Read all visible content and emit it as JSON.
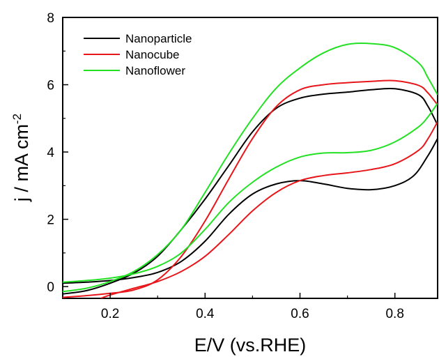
{
  "chart_data": {
    "type": "line",
    "title": "",
    "xlabel": "E/V (vs.RHE)",
    "ylabel": "j / mA cm",
    "ylabel_superscript": "-2",
    "xlim": [
      0.1,
      0.89
    ],
    "ylim": [
      -0.35,
      8
    ],
    "x_ticks": [
      0.2,
      0.4,
      0.6,
      0.8
    ],
    "x_tick_labels": [
      "0.2",
      "0.4",
      "0.6",
      "0.8"
    ],
    "y_ticks": [
      0,
      2,
      4,
      6,
      8
    ],
    "y_tick_labels": [
      "0",
      "2",
      "4",
      "6",
      "8"
    ],
    "grid": false,
    "legend_position": "top-left",
    "series": [
      {
        "name": "Nanoparticle",
        "color": "#000000",
        "forward": [
          [
            0.1,
            0.1
          ],
          [
            0.15,
            0.13
          ],
          [
            0.2,
            0.18
          ],
          [
            0.25,
            0.27
          ],
          [
            0.3,
            0.42
          ],
          [
            0.35,
            0.75
          ],
          [
            0.4,
            1.35
          ],
          [
            0.45,
            2.15
          ],
          [
            0.5,
            2.75
          ],
          [
            0.55,
            3.05
          ],
          [
            0.6,
            3.15
          ],
          [
            0.65,
            3.05
          ],
          [
            0.7,
            2.92
          ],
          [
            0.75,
            2.88
          ],
          [
            0.8,
            3.0
          ],
          [
            0.84,
            3.3
          ],
          [
            0.87,
            3.9
          ],
          [
            0.89,
            4.4
          ]
        ],
        "reverse": [
          [
            0.89,
            4.8
          ],
          [
            0.87,
            5.35
          ],
          [
            0.85,
            5.7
          ],
          [
            0.8,
            5.88
          ],
          [
            0.75,
            5.85
          ],
          [
            0.7,
            5.78
          ],
          [
            0.65,
            5.72
          ],
          [
            0.6,
            5.6
          ],
          [
            0.55,
            5.3
          ],
          [
            0.5,
            4.6
          ],
          [
            0.45,
            3.6
          ],
          [
            0.4,
            2.6
          ],
          [
            0.35,
            1.7
          ],
          [
            0.3,
            0.9
          ],
          [
            0.25,
            0.4
          ],
          [
            0.2,
            0.1
          ],
          [
            0.15,
            -0.12
          ],
          [
            0.1,
            -0.22
          ]
        ]
      },
      {
        "name": "Nanocube",
        "color": "#e8161a",
        "forward": [
          [
            0.18,
            -0.35
          ],
          [
            0.2,
            -0.25
          ],
          [
            0.25,
            -0.05
          ],
          [
            0.3,
            0.15
          ],
          [
            0.35,
            0.45
          ],
          [
            0.4,
            0.9
          ],
          [
            0.45,
            1.55
          ],
          [
            0.5,
            2.25
          ],
          [
            0.55,
            2.8
          ],
          [
            0.6,
            3.15
          ],
          [
            0.65,
            3.3
          ],
          [
            0.7,
            3.38
          ],
          [
            0.75,
            3.48
          ],
          [
            0.8,
            3.65
          ],
          [
            0.85,
            4.05
          ],
          [
            0.87,
            4.4
          ],
          [
            0.89,
            4.9
          ]
        ],
        "reverse": [
          [
            0.89,
            5.4
          ],
          [
            0.87,
            5.75
          ],
          [
            0.85,
            5.98
          ],
          [
            0.8,
            6.12
          ],
          [
            0.75,
            6.1
          ],
          [
            0.7,
            6.06
          ],
          [
            0.65,
            6.0
          ],
          [
            0.6,
            5.85
          ],
          [
            0.55,
            5.35
          ],
          [
            0.5,
            4.4
          ],
          [
            0.45,
            3.2
          ],
          [
            0.4,
            1.95
          ],
          [
            0.35,
            0.9
          ],
          [
            0.3,
            0.2
          ],
          [
            0.25,
            -0.1
          ],
          [
            0.2,
            -0.2
          ],
          [
            0.15,
            -0.27
          ],
          [
            0.1,
            -0.32
          ]
        ]
      },
      {
        "name": "Nanoflower",
        "color": "#22e022",
        "forward": [
          [
            0.1,
            0.13
          ],
          [
            0.15,
            0.18
          ],
          [
            0.2,
            0.25
          ],
          [
            0.25,
            0.38
          ],
          [
            0.3,
            0.6
          ],
          [
            0.35,
            1.0
          ],
          [
            0.4,
            1.7
          ],
          [
            0.45,
            2.5
          ],
          [
            0.5,
            3.1
          ],
          [
            0.55,
            3.55
          ],
          [
            0.6,
            3.85
          ],
          [
            0.65,
            3.97
          ],
          [
            0.7,
            3.98
          ],
          [
            0.75,
            4.05
          ],
          [
            0.8,
            4.3
          ],
          [
            0.85,
            4.75
          ],
          [
            0.87,
            5.05
          ],
          [
            0.89,
            5.45
          ]
        ],
        "reverse": [
          [
            0.89,
            5.7
          ],
          [
            0.87,
            6.2
          ],
          [
            0.85,
            6.65
          ],
          [
            0.8,
            7.1
          ],
          [
            0.75,
            7.22
          ],
          [
            0.7,
            7.2
          ],
          [
            0.65,
            6.95
          ],
          [
            0.6,
            6.5
          ],
          [
            0.55,
            5.9
          ],
          [
            0.5,
            5.0
          ],
          [
            0.45,
            3.95
          ],
          [
            0.4,
            2.8
          ],
          [
            0.35,
            1.7
          ],
          [
            0.3,
            0.95
          ],
          [
            0.25,
            0.45
          ],
          [
            0.2,
            0.15
          ],
          [
            0.15,
            -0.05
          ],
          [
            0.1,
            -0.15
          ]
        ]
      }
    ]
  }
}
